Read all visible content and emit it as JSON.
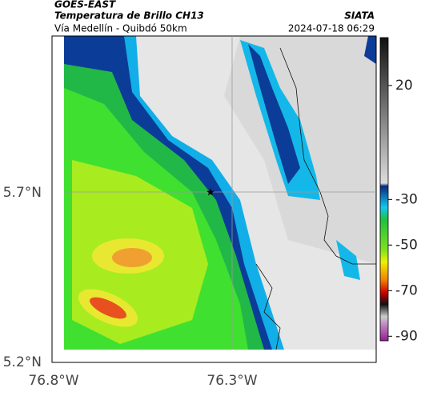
{
  "header": {
    "source": "GOES-EAST",
    "title": "Temperatura de Brillo CH13",
    "subtitle": "Vía Medellín - Quibdó 50km",
    "org": "SIATA",
    "datetime": "2024-07-18 06:29"
  },
  "map": {
    "lat_labels": [
      "5.7°N",
      "5.2°N"
    ],
    "lon_labels": [
      "76.8°W",
      "76.3°W"
    ]
  },
  "colorbar": {
    "range": [
      -92,
      41
    ],
    "ticks": [
      20,
      -30,
      -50,
      -70,
      -90
    ]
  }
}
